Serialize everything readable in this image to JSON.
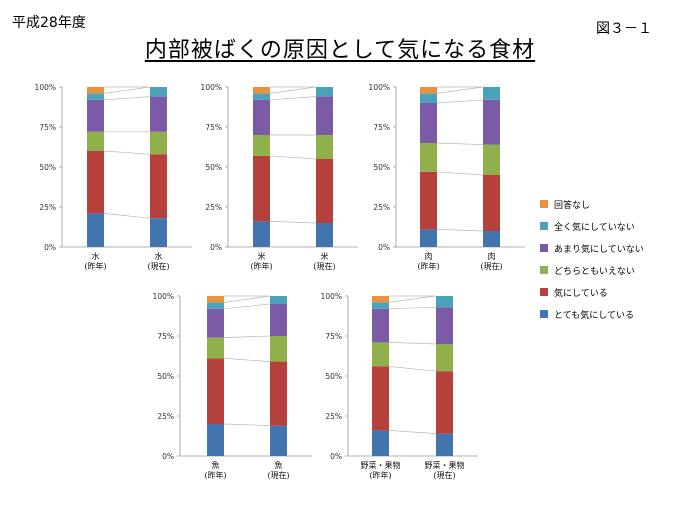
{
  "header": {
    "fiscal_year": "平成28年度",
    "figure_number": "図３－１",
    "title": "内部被ばくの原因として気になる食材"
  },
  "colors": {
    "no_answer": "#e8923f",
    "not_at_all": "#4aa3b8",
    "not_much": "#7b5aa6",
    "neutral": "#8fb04a",
    "concerned": "#b6403c",
    "very_concerned": "#4275ad"
  },
  "chart_data": {
    "type": "bar",
    "stacked": true,
    "ylim": [
      0,
      100
    ],
    "y_ticks": [
      "0%",
      "25%",
      "50%",
      "75%",
      "100%"
    ],
    "series_names": [
      "とても気にしている",
      "気にしている",
      "どちらともいえない",
      "あまり気にしていない",
      "全く気にしていない",
      "回答なし"
    ],
    "legend_order": [
      "回答なし",
      "全く気にしていない",
      "あまり気にしていない",
      "どちらともいえない",
      "気にしている",
      "とても気にしている"
    ],
    "charts": [
      {
        "name": "水",
        "categories": [
          [
            "水",
            "(昨年)"
          ],
          [
            "水",
            "(現在)"
          ]
        ],
        "values": [
          [
            21,
            39,
            12,
            20,
            4,
            4
          ],
          [
            18,
            40,
            14,
            22,
            6,
            0
          ]
        ]
      },
      {
        "name": "米",
        "categories": [
          [
            "米",
            "(昨年)"
          ],
          [
            "米",
            "(現在)"
          ]
        ],
        "values": [
          [
            16,
            41,
            13,
            22,
            4,
            4
          ],
          [
            15,
            40,
            15,
            24,
            6,
            0
          ]
        ]
      },
      {
        "name": "肉",
        "categories": [
          [
            "肉",
            "(昨年)"
          ],
          [
            "肉",
            "(現在)"
          ]
        ],
        "values": [
          [
            11,
            36,
            18,
            25,
            6,
            4
          ],
          [
            10,
            35,
            19,
            28,
            8,
            0
          ]
        ]
      },
      {
        "name": "魚",
        "categories": [
          [
            "魚",
            "(昨年)"
          ],
          [
            "魚",
            "(現在)"
          ]
        ],
        "values": [
          [
            20,
            41,
            13,
            18,
            4,
            4
          ],
          [
            19,
            40,
            16,
            20,
            5,
            0
          ]
        ]
      },
      {
        "name": "野菜・果物",
        "categories": [
          [
            "野菜・果物",
            "(昨年)"
          ],
          [
            "野菜・果物",
            "(現在)"
          ]
        ],
        "values": [
          [
            16,
            40,
            15,
            21,
            4,
            4
          ],
          [
            14,
            39,
            17,
            23,
            7,
            0
          ]
        ]
      }
    ]
  }
}
